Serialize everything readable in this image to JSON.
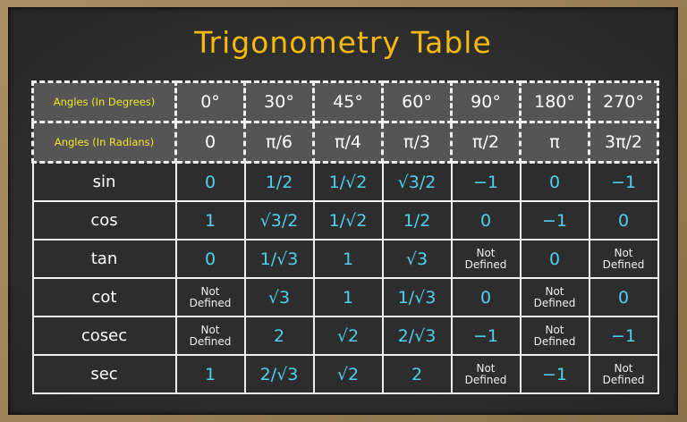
{
  "title": "Trigonometry Table",
  "header_rows": [
    {
      "label": "Angles (In Degrees)",
      "values": [
        "0°",
        "30°",
        "45°",
        "60°",
        "90°",
        "180°",
        "270°"
      ]
    },
    {
      "label": "Angles (In Radians)",
      "values": [
        "0",
        "π/6",
        "π/4",
        "π/3",
        "π/2",
        "π",
        "3π/2"
      ]
    }
  ],
  "rows": [
    {
      "fn": "sin",
      "values": [
        "0",
        "1/2",
        "1/√2",
        "√3/2",
        "−1",
        "0",
        "−1"
      ]
    },
    {
      "fn": "cos",
      "values": [
        "1",
        "√3/2",
        "1/√2",
        "1/2",
        "0",
        "−1",
        "0"
      ]
    },
    {
      "fn": "tan",
      "values": [
        "0",
        "1/√3",
        "1",
        "√3",
        "Not Defined",
        "0",
        "Not Defined"
      ]
    },
    {
      "fn": "cot",
      "values": [
        "Not Defined",
        "√3",
        "1",
        "1/√3",
        "0",
        "Not Defined",
        "0"
      ]
    },
    {
      "fn": "cosec",
      "values": [
        "Not Defined",
        "2",
        "√2",
        "2/√3",
        "−1",
        "Not Defined",
        "−1"
      ]
    },
    {
      "fn": "sec",
      "values": [
        "1",
        "2/√3",
        "√2",
        "2",
        "Not Defined",
        "−1",
        "Not Defined"
      ]
    }
  ],
  "colors": {
    "title": "#f6b90d",
    "header_label": "#f2e82a",
    "value": "#4fd0ee",
    "frame": "#9c8458",
    "board": "#2d2d2d"
  }
}
